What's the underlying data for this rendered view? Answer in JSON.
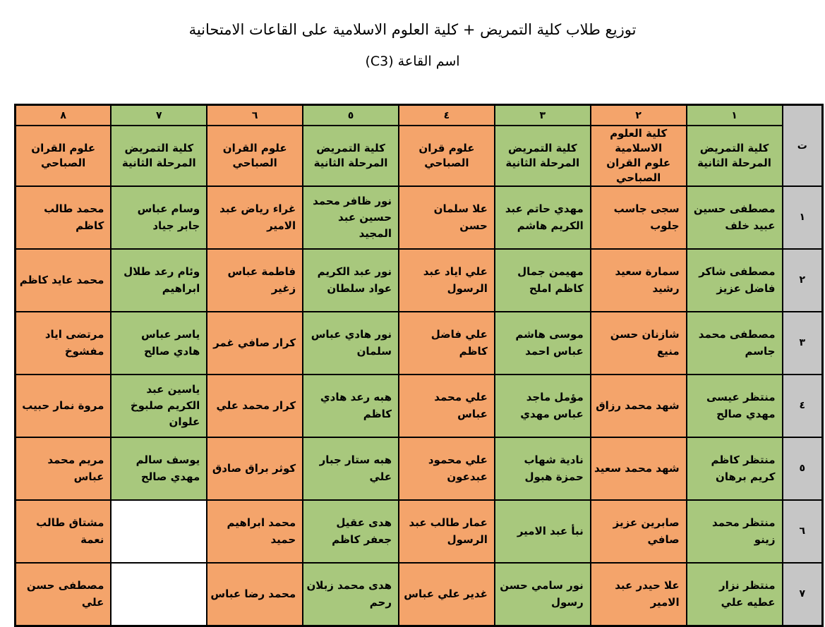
{
  "page": {
    "title": "توزيع طلاب كلية التمريض + كلية العلوم الاسلامية على القاعات الامتحانية",
    "subtitle": "اسم القاعة (C3)"
  },
  "colors": {
    "column_orange": "#F4A46B",
    "column_green": "#A8C87D",
    "serial_gray": "#C6C6C6",
    "empty_cell_white": "#FFFFFF",
    "grid_border": "#000000",
    "page_background": "#FFFFFF"
  },
  "table": {
    "serial_header": "ت",
    "column_numbers": [
      "١",
      "٢",
      "٣",
      "٤",
      "٥",
      "٦",
      "٧",
      "٨"
    ],
    "column_colleges": [
      "كلية التمريض\nالمرحلة الثانية",
      "كلية العلوم الاسلامية\nعلوم القران الصباحي",
      "كلية التمريض\nالمرحلة الثانية",
      "علوم قران\nالصباحي",
      "كلية التمريض\nالمرحلة الثانية",
      "علوم القران\nالصباحي",
      "كلية التمريض\nالمرحلة الثانية",
      "علوم القران\nالصباحي"
    ],
    "column_colors": [
      "green",
      "orange",
      "green",
      "orange",
      "green",
      "orange",
      "green",
      "orange"
    ],
    "rows": [
      {
        "serial": "١",
        "cells": [
          "مصطفى حسين عبيد خلف",
          "سجى جاسب جلوب",
          "مهدي حاتم عبد الكريم هاشم",
          "علا سلمان حسن",
          "نور ظافر محمد حسين عبد المجيد",
          "غراء رياض عبد الامير",
          "وسام عباس جابر جياد",
          "محمد طالب كاظم"
        ]
      },
      {
        "serial": "٢",
        "cells": [
          "مصطفى شاكر فاضل عزيز",
          "سمارة سعيد رشيد",
          "مهيمن جمال كاظم املح",
          "علي اياد عبد الرسول",
          "نور عبد الكريم عواد سلطان",
          "فاطمة عباس زغير",
          "وئام رعد طلال ابراهيم",
          "محمد عايد كاظم"
        ]
      },
      {
        "serial": "٣",
        "cells": [
          "مصطفى محمد جاسم",
          "شازنان حسن منيع",
          "موسى هاشم عباس احمد",
          "علي فاضل كاظم",
          "نور هادي عباس سلمان",
          "كرار صافي غمر",
          "ياسر عباس هادي صالح",
          "مرتضى اياد مفشوخ"
        ]
      },
      {
        "serial": "٤",
        "cells": [
          "منتظر عيسى مهدي صالح",
          "شهد محمد رزاق",
          "مؤمل ماجد عباس مهدي",
          "علي محمد عباس",
          "هبه رعد هادي كاظم",
          "كرار محمد علي",
          "ياسين عبد الكريم صلبوخ علوان",
          "مروة نمار حبيب"
        ]
      },
      {
        "serial": "٥",
        "cells": [
          "منتظر كاظم كريم برهان",
          "شهد محمد سعيد",
          "نادية شهاب حمزة هبول",
          "علي محمود عبدعون",
          "هبه ستار جبار علي",
          "كوثر براق صادق",
          "يوسف سالم مهدي صالح",
          "مريم محمد عباس"
        ]
      },
      {
        "serial": "٦",
        "cells": [
          "منتظر محمد زينو",
          "صابرين عزيز صافي",
          "نبأ عبد الامير",
          "عمار طالب عبد الرسول",
          "هدى عقيل جعفر كاظم",
          "محمد ابراهيم حميد",
          "",
          "مشتاق طالب نعمة"
        ]
      },
      {
        "serial": "٧",
        "cells": [
          "منتظر نزار عطيه علي",
          "علا حيدر عبد الامير",
          "نور سامي حسن رسول",
          "غدير علي عباس",
          "هدى محمد زبلان رحم",
          "محمد رضا عباس",
          "",
          "مصطفى حسن علي"
        ]
      }
    ]
  }
}
